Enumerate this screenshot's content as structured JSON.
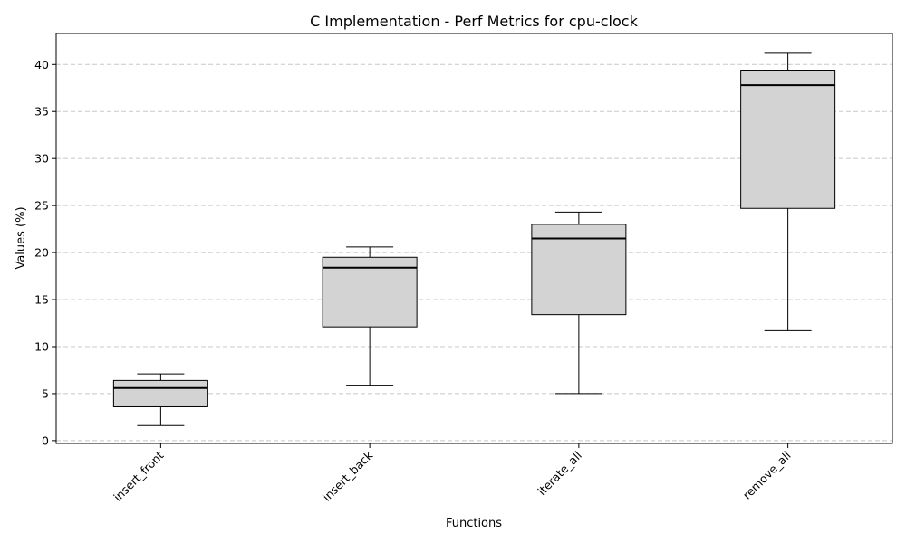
{
  "chart_data": {
    "type": "box",
    "title": "C Implementation - Perf Metrics for cpu-clock",
    "xlabel": "Functions",
    "ylabel": "Values (%)",
    "ylim": [
      -0.3,
      43.3
    ],
    "yticks": [
      0,
      5,
      10,
      15,
      20,
      25,
      30,
      35,
      40
    ],
    "grid": "horizontal dashed",
    "categories": [
      "insert_front",
      "insert_back",
      "iterate_all",
      "remove_all"
    ],
    "boxes": [
      {
        "category": "insert_front",
        "min": 1.6,
        "q1": 3.6,
        "median": 5.6,
        "q3": 6.4,
        "max": 7.1
      },
      {
        "category": "insert_back",
        "min": 5.9,
        "q1": 12.1,
        "median": 18.4,
        "q3": 19.5,
        "max": 20.6
      },
      {
        "category": "iterate_all",
        "min": 5.0,
        "q1": 13.4,
        "median": 21.5,
        "q3": 23.0,
        "max": 24.3
      },
      {
        "category": "remove_all",
        "min": 11.7,
        "q1": 24.7,
        "median": 37.8,
        "q3": 39.4,
        "max": 41.2
      }
    ],
    "box_fill": "#d3d3d3",
    "box_edge": "#000000",
    "grid_color": "#c8c8c8"
  }
}
